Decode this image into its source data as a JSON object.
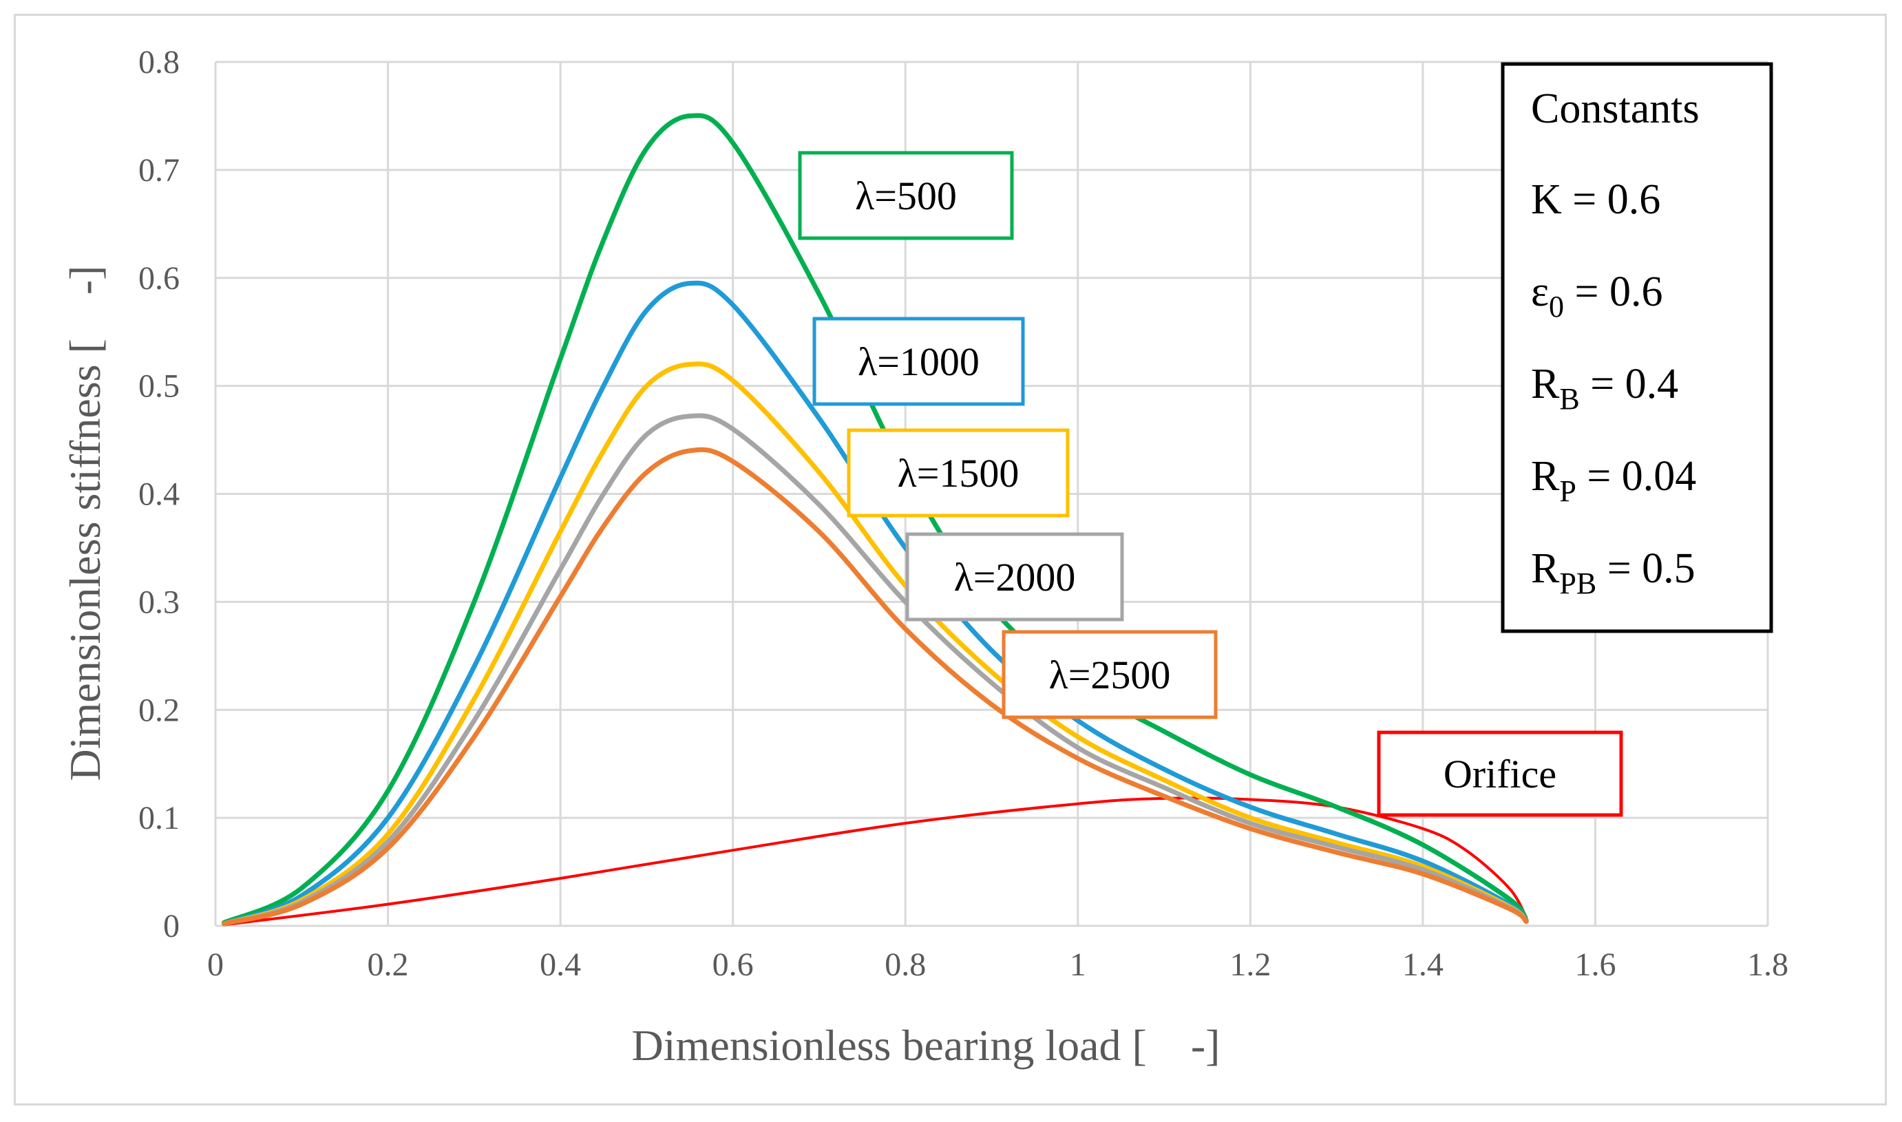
{
  "chart_data": {
    "type": "line",
    "xlabel": "Dimensionless bearing load [    -]",
    "ylabel": "Dimensionless stiffness [    -]",
    "xlim": [
      0,
      1.8
    ],
    "ylim": [
      0,
      0.8
    ],
    "x_ticks": [
      "0",
      "0.2",
      "0.4",
      "0.6",
      "0.8",
      "1",
      "1.2",
      "1.4",
      "1.6",
      "1.8"
    ],
    "y_ticks": [
      "0",
      "0.1",
      "0.2",
      "0.3",
      "0.4",
      "0.5",
      "0.6",
      "0.7",
      "0.8"
    ],
    "grid": true,
    "series": [
      {
        "name": "λ=500",
        "label": "λ=500",
        "color": "#00b050",
        "x": [
          0.01,
          0.1,
          0.2,
          0.3,
          0.4,
          0.45,
          0.5,
          0.55,
          0.6,
          0.7,
          0.8,
          0.9,
          1.0,
          1.1,
          1.2,
          1.3,
          1.4,
          1.5,
          1.52
        ],
        "y": [
          0.003,
          0.035,
          0.125,
          0.3,
          0.525,
          0.635,
          0.72,
          0.75,
          0.725,
          0.585,
          0.42,
          0.295,
          0.225,
          0.18,
          0.14,
          0.11,
          0.075,
          0.025,
          0.005
        ]
      },
      {
        "name": "λ=1000",
        "label": "λ=1000",
        "color": "#1f9bd7",
        "x": [
          0.01,
          0.1,
          0.2,
          0.3,
          0.4,
          0.45,
          0.5,
          0.55,
          0.6,
          0.7,
          0.8,
          0.9,
          1.0,
          1.1,
          1.2,
          1.3,
          1.4,
          1.5,
          1.52
        ],
        "y": [
          0.002,
          0.028,
          0.1,
          0.24,
          0.415,
          0.5,
          0.57,
          0.595,
          0.575,
          0.47,
          0.35,
          0.255,
          0.19,
          0.145,
          0.11,
          0.085,
          0.06,
          0.02,
          0.004
        ]
      },
      {
        "name": "λ=1500",
        "label": "λ=1500",
        "color": "#ffc000",
        "x": [
          0.01,
          0.1,
          0.2,
          0.3,
          0.4,
          0.45,
          0.5,
          0.55,
          0.6,
          0.7,
          0.8,
          0.9,
          1.0,
          1.1,
          1.2,
          1.3,
          1.4,
          1.5,
          1.52
        ],
        "y": [
          0.002,
          0.024,
          0.085,
          0.21,
          0.365,
          0.44,
          0.5,
          0.52,
          0.505,
          0.42,
          0.315,
          0.235,
          0.175,
          0.135,
          0.1,
          0.077,
          0.055,
          0.018,
          0.004
        ]
      },
      {
        "name": "λ=2000",
        "label": "λ=2000",
        "color": "#a5a5a5",
        "x": [
          0.01,
          0.1,
          0.2,
          0.3,
          0.4,
          0.45,
          0.5,
          0.55,
          0.6,
          0.7,
          0.8,
          0.9,
          1.0,
          1.1,
          1.2,
          1.3,
          1.4,
          1.5,
          1.52
        ],
        "y": [
          0.002,
          0.022,
          0.078,
          0.19,
          0.33,
          0.4,
          0.455,
          0.472,
          0.46,
          0.39,
          0.3,
          0.225,
          0.165,
          0.128,
          0.095,
          0.073,
          0.052,
          0.017,
          0.004
        ]
      },
      {
        "name": "λ=2500",
        "label": "λ=2500",
        "color": "#ed7d31",
        "x": [
          0.01,
          0.1,
          0.2,
          0.3,
          0.4,
          0.45,
          0.5,
          0.55,
          0.6,
          0.7,
          0.8,
          0.9,
          1.0,
          1.1,
          1.2,
          1.3,
          1.4,
          1.5,
          1.52
        ],
        "y": [
          0.002,
          0.02,
          0.072,
          0.175,
          0.305,
          0.37,
          0.42,
          0.44,
          0.43,
          0.365,
          0.275,
          0.205,
          0.155,
          0.12,
          0.09,
          0.068,
          0.048,
          0.016,
          0.004
        ]
      },
      {
        "name": "Orifice",
        "label": "Orifice",
        "color": "#ff0000",
        "x": [
          0.01,
          0.2,
          0.4,
          0.6,
          0.8,
          1.0,
          1.1,
          1.2,
          1.3,
          1.4,
          1.45,
          1.5,
          1.52
        ],
        "y": [
          0.001,
          0.02,
          0.044,
          0.07,
          0.095,
          0.113,
          0.118,
          0.117,
          0.11,
          0.09,
          0.07,
          0.035,
          0.008
        ]
      }
    ],
    "annotation_box": {
      "title": "Constants",
      "lines": [
        {
          "base": "K",
          "sub": "",
          "value": " = 0.6"
        },
        {
          "base": "ε",
          "sub": "0",
          "value": " = 0.6"
        },
        {
          "base": "R",
          "sub": "B",
          "value": " = 0.4"
        },
        {
          "base": "R",
          "sub": "P",
          "value": " = 0.04"
        },
        {
          "base": "R",
          "sub": "PB",
          "value": " = 0.5"
        }
      ]
    }
  },
  "colors": {
    "grid": "#d9d9d9",
    "axis_text": "#595959",
    "frame": "#d9d9d9"
  }
}
